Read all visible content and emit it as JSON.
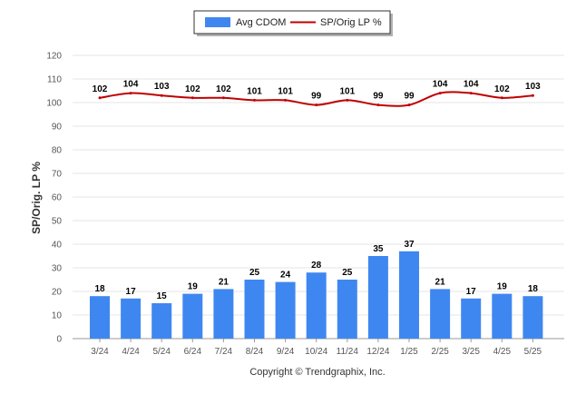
{
  "chart_data": {
    "type": "bar",
    "categories": [
      "3/24",
      "4/24",
      "5/24",
      "6/24",
      "7/24",
      "8/24",
      "9/24",
      "10/24",
      "11/24",
      "12/24",
      "1/25",
      "2/25",
      "3/25",
      "4/25",
      "5/25"
    ],
    "series": [
      {
        "name": "Avg CDOM",
        "type": "bar",
        "color": "#3f87f0",
        "values": [
          18,
          17,
          15,
          19,
          21,
          25,
          24,
          28,
          25,
          35,
          37,
          21,
          17,
          19,
          18
        ]
      },
      {
        "name": "SP/Orig LP %",
        "type": "line",
        "color": "#c00000",
        "values": [
          102,
          104,
          103,
          102,
          102,
          101,
          101,
          99,
          101,
          99,
          99,
          104,
          104,
          102,
          103
        ]
      }
    ],
    "ylabel": "SP/Orig. LP %",
    "ylim": [
      0,
      120
    ],
    "yticks": [
      0,
      10,
      20,
      30,
      40,
      50,
      60,
      70,
      80,
      90,
      100,
      110,
      120
    ],
    "grid": true,
    "legend": "top-center"
  },
  "legend": {
    "bar_label": "Avg CDOM",
    "line_label": "SP/Orig LP %"
  },
  "footer": {
    "copyright": "Copyright © Trendgraphix, Inc."
  }
}
